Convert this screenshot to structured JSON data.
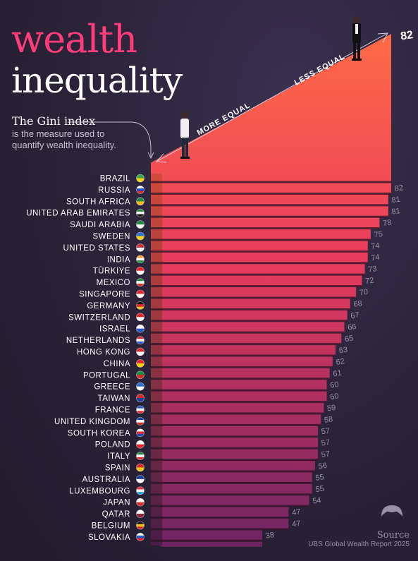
{
  "header": {
    "title_line1": "wealth",
    "title_line2": "inequality"
  },
  "intro": {
    "heading": "The Gini index",
    "description": "is the measure used to quantify wealth inequality."
  },
  "axis_annotations": {
    "more_equal": "MORE EQUAL",
    "less_equal": "LESS EQUAL"
  },
  "footer": {
    "source_heading": "Source",
    "source_text": "UBS Global Wealth Report 2025"
  },
  "colors": {
    "background": "#2a2237",
    "accent_pink": "#ff3d7a",
    "bar_top": "#ff6a46",
    "bar_bottom": "#7a2a66",
    "value_text": "#9a91a8"
  },
  "chart_data": {
    "type": "bar",
    "title": "",
    "xlabel": "",
    "ylabel": "",
    "categories": [
      "BRAZIL",
      "RUSSIA",
      "SOUTH AFRICA",
      "UNITED ARAB EMIRATES",
      "SAUDI ARABIA",
      "SWEDEN",
      "UNITED STATES",
      "INDIA",
      "TÜRKIYE",
      "MEXICO",
      "SINGAPORE",
      "GERMANY",
      "SWITZERLAND",
      "ISRAEL",
      "NETHERLANDS",
      "HONG KONG",
      "CHINA",
      "PORTUGAL",
      "GREECE",
      "TAIWAN",
      "FRANCE",
      "UNITED KINGDOM",
      "SOUTH KOREA",
      "POLAND",
      "ITALY",
      "SPAIN",
      "AUSTRALIA",
      "LUXEMBOURG",
      "JAPAN",
      "QATAR",
      "BELGIUM",
      "SLOVAKIA"
    ],
    "values": [
      82,
      82,
      81,
      81,
      78,
      75,
      74,
      74,
      73,
      72,
      70,
      68,
      67,
      66,
      65,
      63,
      62,
      61,
      60,
      60,
      59,
      58,
      57,
      57,
      57,
      56,
      55,
      55,
      54,
      47,
      47,
      38
    ],
    "labeled_values": [
      82,
      82,
      81,
      81,
      78,
      75,
      74,
      74,
      73,
      72,
      70,
      68,
      67,
      66,
      65,
      63,
      62,
      61,
      60,
      60,
      59,
      58,
      57,
      57,
      57,
      56,
      55,
      55,
      54,
      47,
      47,
      38
    ],
    "ylim": [
      0,
      82
    ],
    "orientation": "horizontal",
    "grid": false,
    "legend": "none"
  }
}
